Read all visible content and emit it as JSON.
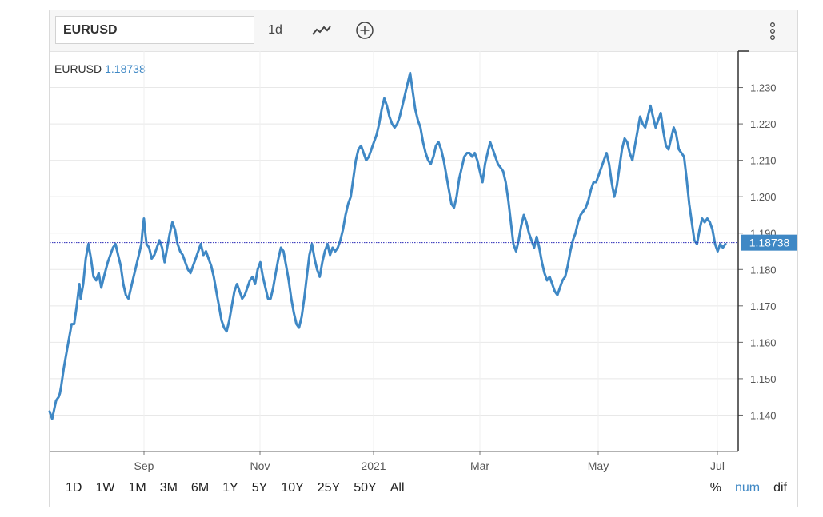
{
  "toolbar": {
    "symbol": "EURUSD",
    "interval": "1d",
    "charttype_icon": "line-chart-icon",
    "compare_icon": "add-circle-icon",
    "menu_icon": "more-vertical-icon"
  },
  "legend": {
    "symbol": "EURUSD",
    "value": "1.18738"
  },
  "price_label": "1.18738",
  "ranges": [
    "1D",
    "1W",
    "1M",
    "3M",
    "6M",
    "1Y",
    "5Y",
    "10Y",
    "25Y",
    "50Y",
    "All"
  ],
  "modes": [
    {
      "label": "%",
      "active": false
    },
    {
      "label": "num",
      "active": true
    },
    {
      "label": "dif",
      "active": false
    }
  ],
  "colors": {
    "line": "#3f88c5",
    "price_line": "#2a2ab8",
    "price_label_bg": "#3f88c5"
  },
  "chart_data": {
    "type": "line",
    "series": [
      {
        "values": [
          [
            0,
            1.141
          ],
          [
            2,
            1.139
          ],
          [
            5,
            1.144
          ],
          [
            7,
            1.145
          ],
          [
            8,
            1.146
          ],
          [
            9,
            1.148
          ],
          [
            11,
            1.153
          ],
          [
            14,
            1.159
          ],
          [
            17,
            1.165
          ],
          [
            19,
            1.165
          ],
          [
            21,
            1.17
          ],
          [
            23,
            1.176
          ],
          [
            24,
            1.172
          ],
          [
            26,
            1.176
          ],
          [
            28,
            1.183
          ],
          [
            30,
            1.187
          ],
          [
            32,
            1.183
          ],
          [
            34,
            1.178
          ],
          [
            36,
            1.177
          ],
          [
            38,
            1.179
          ],
          [
            40,
            1.175
          ],
          [
            42,
            1.178
          ],
          [
            45,
            1.182
          ],
          [
            47,
            1.184
          ],
          [
            49,
            1.186
          ],
          [
            51,
            1.187
          ],
          [
            53,
            1.184
          ],
          [
            55,
            1.181
          ],
          [
            57,
            1.176
          ],
          [
            59,
            1.173
          ],
          [
            61,
            1.172
          ],
          [
            63,
            1.175
          ],
          [
            65,
            1.178
          ],
          [
            67,
            1.181
          ],
          [
            69,
            1.184
          ],
          [
            71,
            1.187
          ],
          [
            72,
            1.191
          ],
          [
            73,
            1.194
          ],
          [
            74,
            1.19
          ],
          [
            75,
            1.187
          ],
          [
            77,
            1.186
          ],
          [
            79,
            1.183
          ],
          [
            81,
            1.184
          ],
          [
            83,
            1.186
          ],
          [
            85,
            1.188
          ],
          [
            87,
            1.186
          ],
          [
            89,
            1.182
          ],
          [
            91,
            1.186
          ],
          [
            93,
            1.19
          ],
          [
            95,
            1.193
          ],
          [
            97,
            1.191
          ],
          [
            99,
            1.187
          ],
          [
            101,
            1.185
          ],
          [
            103,
            1.184
          ],
          [
            105,
            1.182
          ],
          [
            107,
            1.18
          ],
          [
            109,
            1.179
          ],
          [
            111,
            1.181
          ],
          [
            113,
            1.183
          ],
          [
            115,
            1.185
          ],
          [
            117,
            1.187
          ],
          [
            119,
            1.184
          ],
          [
            121,
            1.185
          ],
          [
            123,
            1.183
          ],
          [
            125,
            1.181
          ],
          [
            127,
            1.178
          ],
          [
            129,
            1.174
          ],
          [
            131,
            1.17
          ],
          [
            133,
            1.166
          ],
          [
            135,
            1.164
          ],
          [
            137,
            1.163
          ],
          [
            139,
            1.166
          ],
          [
            141,
            1.17
          ],
          [
            143,
            1.174
          ],
          [
            145,
            1.176
          ],
          [
            147,
            1.174
          ],
          [
            149,
            1.172
          ],
          [
            151,
            1.173
          ],
          [
            153,
            1.175
          ],
          [
            155,
            1.177
          ],
          [
            157,
            1.178
          ],
          [
            159,
            1.176
          ],
          [
            161,
            1.18
          ],
          [
            163,
            1.182
          ],
          [
            165,
            1.178
          ],
          [
            167,
            1.175
          ],
          [
            169,
            1.172
          ],
          [
            171,
            1.172
          ],
          [
            173,
            1.175
          ],
          [
            175,
            1.179
          ],
          [
            177,
            1.183
          ],
          [
            179,
            1.186
          ],
          [
            181,
            1.185
          ],
          [
            183,
            1.181
          ],
          [
            185,
            1.177
          ],
          [
            187,
            1.172
          ],
          [
            189,
            1.168
          ],
          [
            191,
            1.165
          ],
          [
            193,
            1.164
          ],
          [
            195,
            1.167
          ],
          [
            197,
            1.172
          ],
          [
            199,
            1.178
          ],
          [
            201,
            1.184
          ],
          [
            203,
            1.187
          ],
          [
            205,
            1.183
          ],
          [
            207,
            1.18
          ],
          [
            209,
            1.178
          ],
          [
            211,
            1.182
          ],
          [
            213,
            1.185
          ],
          [
            215,
            1.187
          ],
          [
            217,
            1.184
          ],
          [
            219,
            1.186
          ],
          [
            221,
            1.185
          ],
          [
            223,
            1.186
          ],
          [
            225,
            1.188
          ],
          [
            227,
            1.191
          ],
          [
            229,
            1.195
          ],
          [
            231,
            1.198
          ],
          [
            233,
            1.2
          ],
          [
            235,
            1.205
          ],
          [
            237,
            1.21
          ],
          [
            239,
            1.213
          ],
          [
            241,
            1.214
          ],
          [
            243,
            1.212
          ],
          [
            245,
            1.21
          ],
          [
            247,
            1.211
          ],
          [
            249,
            1.213
          ],
          [
            251,
            1.215
          ],
          [
            253,
            1.217
          ],
          [
            255,
            1.22
          ],
          [
            257,
            1.224
          ],
          [
            259,
            1.227
          ],
          [
            261,
            1.225
          ],
          [
            263,
            1.222
          ],
          [
            265,
            1.22
          ],
          [
            267,
            1.219
          ],
          [
            269,
            1.22
          ],
          [
            271,
            1.222
          ],
          [
            273,
            1.225
          ],
          [
            275,
            1.228
          ],
          [
            277,
            1.231
          ],
          [
            279,
            1.234
          ],
          [
            281,
            1.229
          ],
          [
            283,
            1.224
          ],
          [
            285,
            1.221
          ],
          [
            287,
            1.219
          ],
          [
            289,
            1.215
          ],
          [
            291,
            1.212
          ],
          [
            293,
            1.21
          ],
          [
            295,
            1.209
          ],
          [
            297,
            1.211
          ],
          [
            299,
            1.214
          ],
          [
            301,
            1.215
          ],
          [
            303,
            1.213
          ],
          [
            305,
            1.21
          ],
          [
            307,
            1.206
          ],
          [
            309,
            1.202
          ],
          [
            311,
            1.198
          ],
          [
            313,
            1.197
          ],
          [
            315,
            1.2
          ],
          [
            317,
            1.205
          ],
          [
            319,
            1.208
          ],
          [
            321,
            1.211
          ],
          [
            323,
            1.212
          ],
          [
            325,
            1.212
          ],
          [
            327,
            1.211
          ],
          [
            329,
            1.212
          ],
          [
            331,
            1.21
          ],
          [
            333,
            1.207
          ],
          [
            335,
            1.204
          ],
          [
            337,
            1.209
          ],
          [
            339,
            1.212
          ],
          [
            341,
            1.215
          ],
          [
            343,
            1.213
          ],
          [
            345,
            1.211
          ],
          [
            347,
            1.209
          ],
          [
            349,
            1.208
          ],
          [
            351,
            1.207
          ],
          [
            353,
            1.204
          ],
          [
            355,
            1.199
          ],
          [
            357,
            1.193
          ],
          [
            359,
            1.187
          ],
          [
            361,
            1.185
          ],
          [
            363,
            1.188
          ],
          [
            365,
            1.192
          ],
          [
            367,
            1.195
          ],
          [
            369,
            1.193
          ],
          [
            371,
            1.19
          ],
          [
            373,
            1.188
          ],
          [
            375,
            1.186
          ],
          [
            377,
            1.189
          ],
          [
            379,
            1.186
          ],
          [
            381,
            1.182
          ],
          [
            383,
            1.179
          ],
          [
            385,
            1.177
          ],
          [
            387,
            1.178
          ],
          [
            389,
            1.176
          ],
          [
            391,
            1.174
          ],
          [
            393,
            1.173
          ],
          [
            395,
            1.175
          ],
          [
            397,
            1.177
          ],
          [
            399,
            1.178
          ],
          [
            401,
            1.181
          ],
          [
            403,
            1.185
          ],
          [
            405,
            1.188
          ],
          [
            407,
            1.19
          ],
          [
            409,
            1.193
          ],
          [
            411,
            1.195
          ],
          [
            413,
            1.196
          ],
          [
            415,
            1.197
          ],
          [
            417,
            1.199
          ],
          [
            419,
            1.202
          ],
          [
            421,
            1.204
          ],
          [
            423,
            1.204
          ],
          [
            425,
            1.206
          ],
          [
            427,
            1.208
          ],
          [
            429,
            1.21
          ],
          [
            431,
            1.212
          ],
          [
            433,
            1.209
          ],
          [
            435,
            1.204
          ],
          [
            437,
            1.2
          ],
          [
            439,
            1.203
          ],
          [
            441,
            1.208
          ],
          [
            443,
            1.213
          ],
          [
            445,
            1.216
          ],
          [
            447,
            1.215
          ],
          [
            449,
            1.212
          ],
          [
            451,
            1.21
          ],
          [
            453,
            1.214
          ],
          [
            455,
            1.218
          ],
          [
            457,
            1.222
          ],
          [
            459,
            1.22
          ],
          [
            461,
            1.219
          ],
          [
            463,
            1.222
          ],
          [
            465,
            1.225
          ],
          [
            467,
            1.222
          ],
          [
            469,
            1.219
          ],
          [
            471,
            1.221
          ],
          [
            473,
            1.223
          ],
          [
            475,
            1.218
          ],
          [
            477,
            1.214
          ],
          [
            479,
            1.213
          ],
          [
            481,
            1.216
          ],
          [
            483,
            1.219
          ],
          [
            485,
            1.217
          ],
          [
            487,
            1.213
          ],
          [
            489,
            1.212
          ],
          [
            491,
            1.211
          ],
          [
            493,
            1.205
          ],
          [
            495,
            1.198
          ],
          [
            497,
            1.193
          ],
          [
            499,
            1.188
          ],
          [
            501,
            1.187
          ],
          [
            503,
            1.191
          ],
          [
            505,
            1.194
          ],
          [
            507,
            1.193
          ],
          [
            509,
            1.194
          ],
          [
            511,
            1.193
          ],
          [
            513,
            1.191
          ],
          [
            515,
            1.187
          ],
          [
            517,
            1.185
          ],
          [
            519,
            1.187
          ],
          [
            521,
            1.186
          ],
          [
            523,
            1.187
          ]
        ]
      }
    ],
    "x_tick_labels": [
      "Sep",
      "Nov",
      "2021",
      "Mar",
      "May",
      "Jul"
    ],
    "y_tick_labels": [
      "1.230",
      "1.220",
      "1.210",
      "1.200",
      "1.190",
      "1.180",
      "1.170",
      "1.160",
      "1.150",
      "1.140"
    ],
    "ylim": [
      1.13,
      1.24
    ],
    "grid": true
  }
}
